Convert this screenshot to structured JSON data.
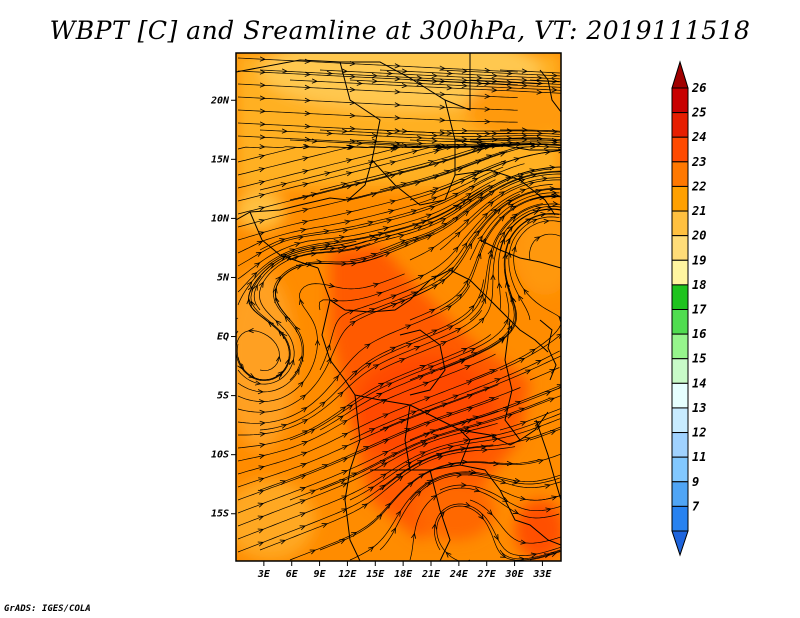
{
  "title": "WBPT [C] and Sreamline at 300hPa, VT: 2019111518",
  "credit": "GrADS: IGES/COLA",
  "map": {
    "lon_range": [
      0,
      35
    ],
    "lat_range": [
      -19,
      24
    ],
    "lat_ticks": [
      {
        "value": 20,
        "label": "20N"
      },
      {
        "value": 15,
        "label": "15N"
      },
      {
        "value": 10,
        "label": "10N"
      },
      {
        "value": 5,
        "label": "5N"
      },
      {
        "value": 0,
        "label": "EQ"
      },
      {
        "value": -5,
        "label": "5S"
      },
      {
        "value": -10,
        "label": "10S"
      },
      {
        "value": -15,
        "label": "15S"
      }
    ],
    "lon_ticks": [
      {
        "value": 3,
        "label": "3E"
      },
      {
        "value": 6,
        "label": "6E"
      },
      {
        "value": 9,
        "label": "9E"
      },
      {
        "value": 12,
        "label": "12E"
      },
      {
        "value": 15,
        "label": "15E"
      },
      {
        "value": 18,
        "label": "18E"
      },
      {
        "value": 21,
        "label": "21E"
      },
      {
        "value": 24,
        "label": "24E"
      },
      {
        "value": 27,
        "label": "27E"
      },
      {
        "value": 30,
        "label": "30E"
      },
      {
        "value": 33,
        "label": "33E"
      }
    ]
  },
  "colorbar": {
    "labels": [
      "7",
      "9",
      "11",
      "12",
      "13",
      "14",
      "15",
      "16",
      "17",
      "18",
      "19",
      "20",
      "21",
      "22",
      "23",
      "24",
      "25",
      "26"
    ],
    "colors": [
      "#1e64dc",
      "#2882f0",
      "#50a5f5",
      "#82c8ff",
      "#a0d2ff",
      "#c8ebff",
      "#e6ffff",
      "#c8fac8",
      "#96f58c",
      "#50dc50",
      "#1ec31e",
      "#fff5a0",
      "#ffdc78",
      "#ffc040",
      "#ffa000",
      "#ff7800",
      "#ff4a00",
      "#e61e00",
      "#c80000",
      "#a00000"
    ]
  }
}
